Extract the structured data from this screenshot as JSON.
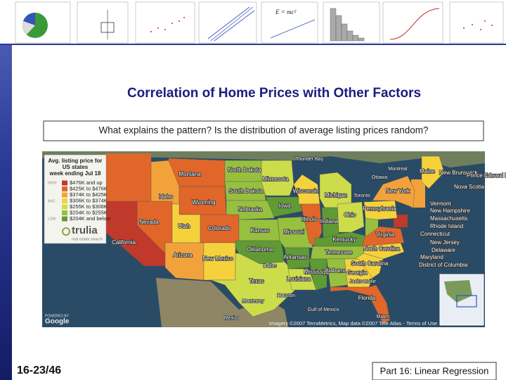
{
  "slide": {
    "title": "Correlation of Home Prices with Other Factors",
    "subtitle": "What explains the pattern?  Is the distribution of average listing prices random?",
    "slide_number": "16-23/46",
    "footer": "Part 16: Linear Regression",
    "thumbnail_formula": "E = mc²"
  },
  "map": {
    "legend": {
      "title": [
        "Avg. listing price for",
        "US states",
        "week ending Jul 18"
      ],
      "scale_labels": [
        "HIGH",
        "AVG",
        "LOW"
      ],
      "items": [
        {
          "label": "$476K and up",
          "color": "#c0392b"
        },
        {
          "label": "$425K to $476K",
          "color": "#e0662a"
        },
        {
          "label": "$374K to $425K",
          "color": "#f2a23a"
        },
        {
          "label": "$306K to $374K",
          "color": "#f5d23c"
        },
        {
          "label": "$255K to $306K",
          "color": "#cddc4a"
        },
        {
          "label": "$204K to $255K",
          "color": "#97c03e"
        },
        {
          "label": "$204K and below",
          "color": "#5f9a34"
        }
      ],
      "brand": "trulia",
      "brand_tagline": "real estate search"
    },
    "powered_by": "POWERED BY",
    "google": "Google",
    "credit": "Imagery ©2007 TerraMetrics, Map data ©2007 Tele Atlas - Terms of Use",
    "states": [
      {
        "label": "Montana",
        "color": "#e0662a"
      },
      {
        "label": "Idaho",
        "color": "#f2a23a"
      },
      {
        "label": "Wyoming",
        "color": "#e0662a"
      },
      {
        "label": "Nevada",
        "color": "#e0662a"
      },
      {
        "label": "Utah",
        "color": "#f5d23c"
      },
      {
        "label": "Colorado",
        "color": "#e0662a"
      },
      {
        "label": "California",
        "color": "#c0392b"
      },
      {
        "label": "Arizona",
        "color": "#f2a23a"
      },
      {
        "label": "New Mexico",
        "color": "#f5d23c"
      },
      {
        "label": "North Dakota",
        "color": "#97c03e"
      },
      {
        "label": "South Dakota",
        "color": "#97c03e"
      },
      {
        "label": "Nebraska",
        "color": "#97c03e"
      },
      {
        "label": "Kansas",
        "color": "#97c03e"
      },
      {
        "label": "Oklahoma",
        "color": "#5f9a34"
      },
      {
        "label": "Texas",
        "color": "#cddc4a"
      },
      {
        "label": "Minnesota",
        "color": "#cddc4a"
      },
      {
        "label": "Iowa",
        "color": "#5f9a34"
      },
      {
        "label": "Missouri",
        "color": "#97c03e"
      },
      {
        "label": "Arkansas",
        "color": "#5f9a34"
      },
      {
        "label": "Louisiana",
        "color": "#cddc4a"
      },
      {
        "label": "Wisconsin",
        "color": "#f5d23c"
      },
      {
        "label": "Illinois",
        "color": "#e0662a"
      },
      {
        "label": "Michigan",
        "color": "#cddc4a"
      },
      {
        "label": "Indiana",
        "color": "#5f9a34"
      },
      {
        "label": "Ohio",
        "color": "#cddc4a"
      },
      {
        "label": "Kentucky",
        "color": "#5f9a34"
      },
      {
        "label": "Tennessee",
        "color": "#97c03e"
      },
      {
        "label": "Mississippi",
        "color": "#5f9a34"
      },
      {
        "label": "Alabama",
        "color": "#97c03e"
      },
      {
        "label": "Georgia",
        "color": "#f5d23c"
      },
      {
        "label": "Florida",
        "color": "#e0662a"
      },
      {
        "label": "South Carolina",
        "color": "#f5d23c"
      },
      {
        "label": "North Carolina",
        "color": "#f5d23c"
      },
      {
        "label": "Virginia",
        "color": "#e0662a"
      },
      {
        "label": "Pennsylvania",
        "color": "#f5d23c"
      },
      {
        "label": "New York",
        "color": "#f2a23a"
      },
      {
        "label": "Maine",
        "color": "#f5d23c"
      }
    ],
    "places": [
      "Thunder Bay",
      "Ottawa",
      "Montreal",
      "Toronto",
      "New Brunswick",
      "Nova Scotia",
      "Prince Edward Island",
      "Vermont",
      "New Hampshire",
      "Massachusetts",
      "Rhode Island",
      "Connecticut",
      "New Jersey",
      "Delaware",
      "Maryland",
      "District of Columbia",
      "Dallas",
      "Houston",
      "Jacksonville",
      "Miami",
      "Gulf of Mexico",
      "Monterrey",
      "Mexico"
    ]
  }
}
